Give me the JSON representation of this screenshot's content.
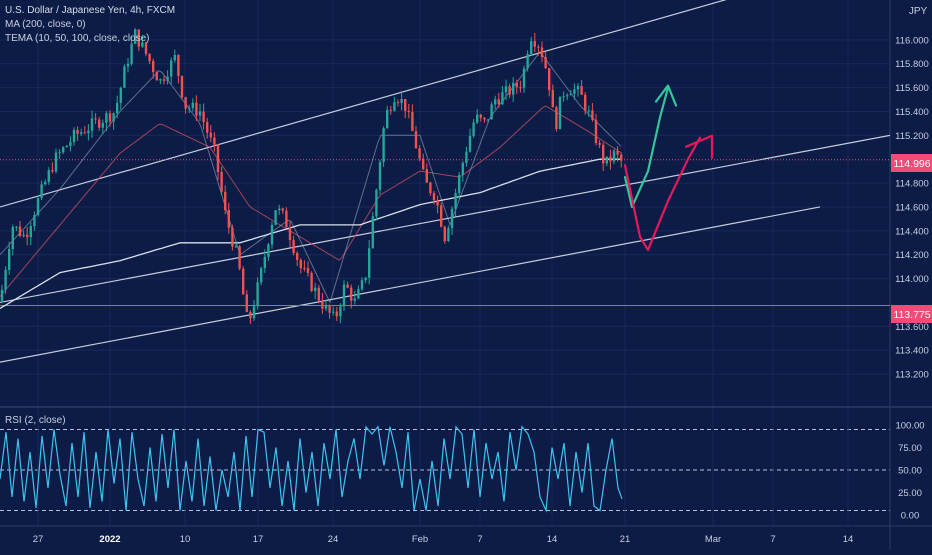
{
  "header": {
    "symbol": "U.S. Dollar / Japanese Yen, 4h, FXCM",
    "ma_label": "MA (200, close, 0)",
    "tema_label": "TEMA (10, 50, 100, close, close)",
    "rsi_label": "RSI (2, close)"
  },
  "colors": {
    "background": "#0c1c46",
    "up_candle": "#26a69a",
    "down_candle": "#ef5350",
    "price_line": "#ef4d78",
    "channel": "#e8ecf5",
    "rsi_line": "#3fc3ee",
    "green_arrow": "#35c59a",
    "pink_arrow": "#e8185c"
  },
  "chart_data": [
    {
      "type": "candlestick",
      "title": "U.S. Dollar / Japanese Yen, 4h, FXCM",
      "currency": "JPY",
      "y_ticks": [
        "116.000",
        "115.800",
        "115.600",
        "115.400",
        "115.200",
        "114.800",
        "114.600",
        "114.400",
        "114.200",
        "114.000",
        "113.600",
        "113.400",
        "113.200"
      ],
      "ylim": [
        113.05,
        116.25
      ],
      "x_ticks": [
        "27",
        "2022",
        "10",
        "17",
        "24",
        "Feb",
        "7",
        "14",
        "21",
        "Mar",
        "7",
        "14"
      ],
      "current_price_label": "114.996",
      "current_price": 114.996,
      "horizontal_level_label": "113.775",
      "horizontal_level": 113.775,
      "price_anchors": [
        [
          0,
          113.8
        ],
        [
          12,
          114.45
        ],
        [
          25,
          114.35
        ],
        [
          40,
          114.7
        ],
        [
          55,
          115.0
        ],
        [
          75,
          115.2
        ],
        [
          95,
          115.3
        ],
        [
          115,
          115.4
        ],
        [
          125,
          115.75
        ],
        [
          135,
          116.05
        ],
        [
          145,
          115.9
        ],
        [
          160,
          115.65
        ],
        [
          175,
          115.85
        ],
        [
          185,
          115.45
        ],
        [
          200,
          115.4
        ],
        [
          215,
          115.05
        ],
        [
          225,
          114.55
        ],
        [
          238,
          114.15
        ],
        [
          248,
          113.6
        ],
        [
          260,
          114.0
        ],
        [
          275,
          114.6
        ],
        [
          285,
          114.5
        ],
        [
          300,
          114.1
        ],
        [
          315,
          113.9
        ],
        [
          325,
          113.75
        ],
        [
          335,
          113.65
        ],
        [
          345,
          113.95
        ],
        [
          355,
          113.8
        ],
        [
          365,
          114.0
        ],
        [
          375,
          114.65
        ],
        [
          385,
          115.35
        ],
        [
          395,
          115.55
        ],
        [
          405,
          115.45
        ],
        [
          415,
          115.15
        ],
        [
          425,
          114.8
        ],
        [
          435,
          114.7
        ],
        [
          445,
          114.35
        ],
        [
          455,
          114.7
        ],
        [
          465,
          115.05
        ],
        [
          475,
          115.35
        ],
        [
          485,
          115.3
        ],
        [
          495,
          115.5
        ],
        [
          505,
          115.55
        ],
        [
          515,
          115.6
        ],
        [
          522,
          115.65
        ],
        [
          530,
          116.05
        ],
        [
          540,
          115.95
        ],
        [
          548,
          115.7
        ],
        [
          555,
          115.25
        ],
        [
          562,
          115.55
        ],
        [
          570,
          115.6
        ],
        [
          580,
          115.55
        ],
        [
          588,
          115.4
        ],
        [
          595,
          115.2
        ],
        [
          605,
          114.95
        ],
        [
          615,
          115.05
        ],
        [
          620,
          114.98
        ]
      ],
      "ma200_anchors": [
        [
          0,
          113.75
        ],
        [
          60,
          114.05
        ],
        [
          120,
          114.15
        ],
        [
          180,
          114.3
        ],
        [
          240,
          114.3
        ],
        [
          300,
          114.45
        ],
        [
          360,
          114.45
        ],
        [
          420,
          114.62
        ],
        [
          480,
          114.72
        ],
        [
          540,
          114.9
        ],
        [
          600,
          115.0
        ],
        [
          622,
          115.0
        ]
      ],
      "tema_fast_anchors": [
        [
          0,
          114.2
        ],
        [
          60,
          114.75
        ],
        [
          120,
          115.4
        ],
        [
          160,
          115.75
        ],
        [
          200,
          115.3
        ],
        [
          240,
          114.2
        ],
        [
          290,
          114.5
        ],
        [
          330,
          113.8
        ],
        [
          380,
          115.2
        ],
        [
          420,
          115.2
        ],
        [
          450,
          114.45
        ],
        [
          490,
          115.35
        ],
        [
          540,
          115.9
        ],
        [
          580,
          115.45
        ],
        [
          622,
          115.1
        ]
      ],
      "tema_slow_anchors": [
        [
          0,
          113.85
        ],
        [
          60,
          114.45
        ],
        [
          120,
          115.05
        ],
        [
          160,
          115.3
        ],
        [
          210,
          115.1
        ],
        [
          250,
          114.6
        ],
        [
          300,
          114.35
        ],
        [
          340,
          114.15
        ],
        [
          380,
          114.7
        ],
        [
          420,
          114.9
        ],
        [
          460,
          114.85
        ],
        [
          500,
          115.1
        ],
        [
          545,
          115.45
        ],
        [
          585,
          115.25
        ],
        [
          622,
          115.05
        ]
      ],
      "channel_lines": [
        [
          [
            0,
            114.6
          ],
          [
            815,
            116.55
          ]
        ],
        [
          [
            0,
            113.8
          ],
          [
            890,
            115.2
          ]
        ],
        [
          [
            0,
            113.3
          ],
          [
            820,
            114.6
          ]
        ]
      ],
      "projection_green": [
        [
          625,
          114.85
        ],
        [
          632,
          114.6
        ],
        [
          648,
          114.9
        ],
        [
          660,
          115.35
        ],
        [
          668,
          115.6
        ]
      ],
      "projection_pink": [
        [
          625,
          114.95
        ],
        [
          640,
          114.35
        ],
        [
          648,
          114.24
        ],
        [
          668,
          114.65
        ],
        [
          688,
          115.0
        ],
        [
          700,
          115.18
        ]
      ]
    },
    {
      "type": "line",
      "title": "RSI (2, close)",
      "y_ticks": [
        "100.00",
        "75.00",
        "50.00",
        "25.00",
        "0.00"
      ],
      "ylim": [
        0,
        100
      ],
      "guide_levels": [
        95,
        50,
        5
      ],
      "rsi_anchors": [
        [
          0,
          40
        ],
        [
          6,
          92
        ],
        [
          12,
          20
        ],
        [
          18,
          85
        ],
        [
          24,
          15
        ],
        [
          30,
          70
        ],
        [
          36,
          8
        ],
        [
          42,
          88
        ],
        [
          48,
          30
        ],
        [
          54,
          95
        ],
        [
          60,
          45
        ],
        [
          66,
          10
        ],
        [
          72,
          80
        ],
        [
          78,
          20
        ],
        [
          84,
          92
        ],
        [
          90,
          8
        ],
        [
          96,
          70
        ],
        [
          102,
          15
        ],
        [
          108,
          95
        ],
        [
          114,
          35
        ],
        [
          120,
          85
        ],
        [
          126,
          5
        ],
        [
          132,
          92
        ],
        [
          138,
          40
        ],
        [
          144,
          10
        ],
        [
          150,
          75
        ],
        [
          156,
          15
        ],
        [
          162,
          90
        ],
        [
          168,
          30
        ],
        [
          174,
          95
        ],
        [
          180,
          5
        ],
        [
          186,
          60
        ],
        [
          192,
          15
        ],
        [
          198,
          85
        ],
        [
          204,
          10
        ],
        [
          210,
          65
        ],
        [
          216,
          5
        ],
        [
          222,
          50
        ],
        [
          228,
          20
        ],
        [
          234,
          70
        ],
        [
          240,
          5
        ],
        [
          246,
          88
        ],
        [
          252,
          20
        ],
        [
          258,
          95
        ],
        [
          264,
          92
        ],
        [
          270,
          30
        ],
        [
          276,
          75
        ],
        [
          282,
          10
        ],
        [
          288,
          60
        ],
        [
          294,
          5
        ],
        [
          300,
          85
        ],
        [
          306,
          25
        ],
        [
          312,
          70
        ],
        [
          318,
          10
        ],
        [
          324,
          80
        ],
        [
          330,
          40
        ],
        [
          336,
          95
        ],
        [
          342,
          20
        ],
        [
          348,
          60
        ],
        [
          354,
          85
        ],
        [
          360,
          40
        ],
        [
          366,
          98
        ],
        [
          372,
          90
        ],
        [
          378,
          98
        ],
        [
          384,
          55
        ],
        [
          390,
          98
        ],
        [
          396,
          70
        ],
        [
          402,
          30
        ],
        [
          408,
          92
        ],
        [
          414,
          5
        ],
        [
          420,
          40
        ],
        [
          426,
          5
        ],
        [
          432,
          60
        ],
        [
          438,
          10
        ],
        [
          444,
          85
        ],
        [
          450,
          40
        ],
        [
          456,
          98
        ],
        [
          462,
          90
        ],
        [
          468,
          30
        ],
        [
          474,
          95
        ],
        [
          480,
          20
        ],
        [
          486,
          80
        ],
        [
          492,
          40
        ],
        [
          498,
          70
        ],
        [
          504,
          15
        ],
        [
          510,
          92
        ],
        [
          516,
          50
        ],
        [
          522,
          98
        ],
        [
          528,
          90
        ],
        [
          534,
          70
        ],
        [
          540,
          20
        ],
        [
          546,
          5
        ],
        [
          552,
          75
        ],
        [
          558,
          40
        ],
        [
          564,
          80
        ],
        [
          570,
          10
        ],
        [
          576,
          70
        ],
        [
          582,
          25
        ],
        [
          588,
          80
        ],
        [
          594,
          10
        ],
        [
          600,
          5
        ],
        [
          606,
          50
        ],
        [
          612,
          85
        ],
        [
          618,
          30
        ],
        [
          622,
          18
        ]
      ]
    }
  ],
  "annotations": {
    "green_arrow": "green-arrow",
    "pink_arrow": "pink-arrow"
  }
}
